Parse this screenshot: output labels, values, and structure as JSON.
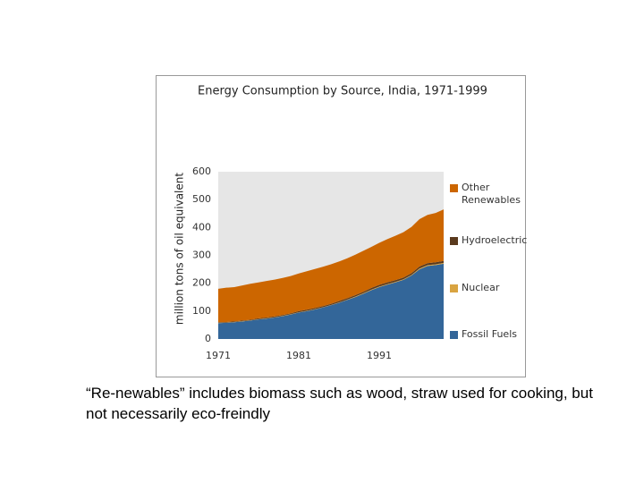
{
  "chart_data": {
    "type": "stacked-area",
    "title": "Energy Consumption by Source, India, 1971-1999",
    "y_label": "million tons of oil equivalent",
    "x": [
      1971,
      1972,
      1973,
      1974,
      1975,
      1976,
      1977,
      1978,
      1979,
      1980,
      1981,
      1982,
      1983,
      1984,
      1985,
      1986,
      1987,
      1988,
      1989,
      1990,
      1991,
      1992,
      1993,
      1994,
      1995,
      1996,
      1997,
      1998,
      1999
    ],
    "xlim": [
      1971,
      1999
    ],
    "xticks": [
      1971,
      1981,
      1991
    ],
    "ylim": [
      0,
      600
    ],
    "yticks": [
      0,
      100,
      200,
      300,
      400,
      500,
      600
    ],
    "series": [
      {
        "name": "Fossil Fuels",
        "color": "#336699",
        "values": [
          57,
          58,
          60,
          63,
          66,
          70,
          73,
          77,
          82,
          88,
          95,
          100,
          106,
          113,
          121,
          130,
          140,
          150,
          162,
          175,
          186,
          195,
          203,
          212,
          228,
          250,
          262,
          265,
          270
        ]
      },
      {
        "name": "Nuclear",
        "color": "#d9a441",
        "values": [
          1,
          1,
          1,
          1,
          1,
          1,
          1,
          1,
          1,
          1,
          1,
          1,
          1,
          1,
          1,
          1,
          1,
          2,
          2,
          2,
          2,
          2,
          2,
          2,
          2,
          3,
          3,
          3,
          3
        ]
      },
      {
        "name": "Hydroelectric",
        "color": "#5a3a1e",
        "values": [
          2,
          2,
          2,
          2,
          2,
          3,
          3,
          3,
          3,
          3,
          4,
          4,
          4,
          4,
          4,
          5,
          5,
          5,
          5,
          6,
          6,
          6,
          6,
          6,
          6,
          7,
          7,
          7,
          7
        ]
      },
      {
        "name": "Other Renewables",
        "color": "#cc6600",
        "values": [
          120,
          123,
          123,
          126,
          129,
          129,
          131,
          132,
          133,
          134,
          135,
          138,
          140,
          141,
          142,
          142,
          143,
          145,
          147,
          147,
          151,
          155,
          159,
          163,
          166,
          170,
          173,
          177,
          185
        ]
      }
    ]
  },
  "caption": "“Re-newables” includes biomass such as wood, straw used for cooking, but not necessarily eco-freindly"
}
